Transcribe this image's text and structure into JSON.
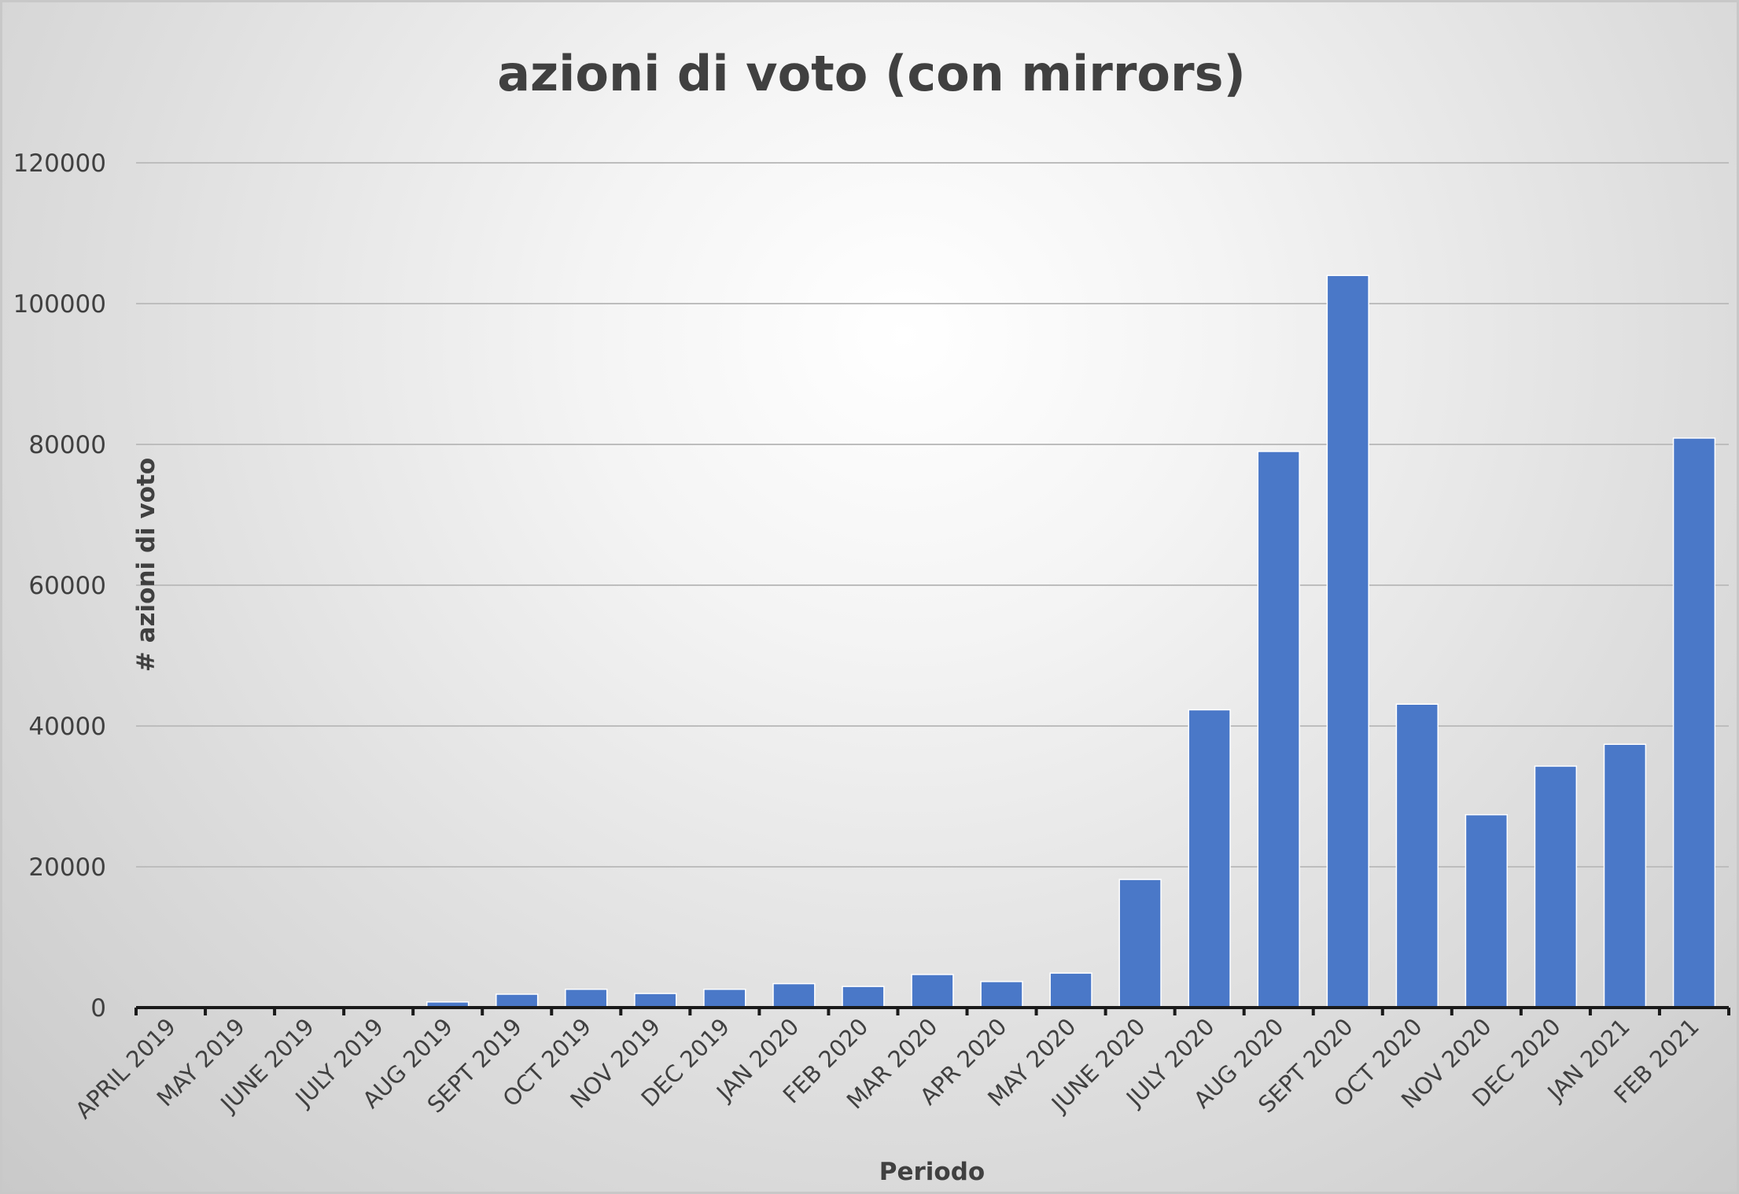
{
  "chart_data": {
    "type": "bar",
    "title": "azioni di voto (con mirrors)",
    "xlabel": "Periodo",
    "ylabel": "# azioni di voto",
    "ylim": [
      0,
      120000
    ],
    "yticks": [
      0,
      20000,
      40000,
      60000,
      80000,
      100000,
      120000
    ],
    "grid": true,
    "legend": "none",
    "categories": [
      "APRIL 2019",
      "MAY 2019",
      "JUNE 2019",
      "JULY 2019",
      "AUG 2019",
      "SEPT 2019",
      "OCT 2019",
      "NOV 2019",
      "DEC 2019",
      "JAN 2020",
      "FEB 2020",
      "MAR 2020",
      "APR 2020",
      "MAY 2020",
      "JUNE 2020",
      "JULY 2020",
      "AUG 2020",
      "SEPT 2020",
      "OCT 2020",
      "NOV 2020",
      "DEC 2020",
      "JAN 2021",
      "FEB 2021"
    ],
    "values": [
      0,
      0,
      0,
      0,
      800,
      1900,
      2600,
      2000,
      2600,
      3400,
      3000,
      4700,
      3700,
      4900,
      18200,
      42300,
      79000,
      104000,
      43100,
      27400,
      34300,
      37400,
      80900
    ],
    "colors": {
      "bar": "#4a78c8",
      "bar_edge": "#ffffff",
      "grid": "#bdbdbd",
      "axis": "#1a1a1a",
      "text": "#404040"
    }
  }
}
